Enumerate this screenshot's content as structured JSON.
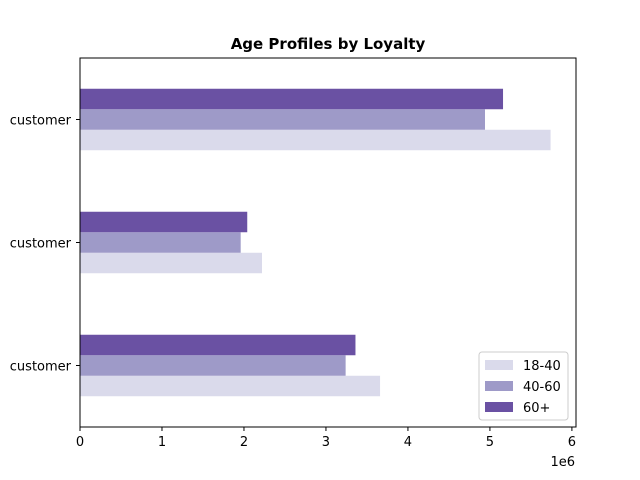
{
  "chart_data": {
    "type": "bar",
    "orientation": "horizontal",
    "title": "Age Profiles by Loyalty",
    "xlabel": "",
    "ylabel": "",
    "x_scale_label": "1e6",
    "xlim": [
      0,
      6050000
    ],
    "x_ticks": [
      0,
      1000000,
      2000000,
      3000000,
      4000000,
      5000000,
      6000000
    ],
    "x_tick_labels": [
      "0",
      "1",
      "2",
      "3",
      "4",
      "5",
      "6"
    ],
    "categories": [
      "customer",
      "customer",
      "customer"
    ],
    "series": [
      {
        "name": "18-40",
        "color": "#dadaeb",
        "values": [
          3660000,
          2220000,
          5740000
        ]
      },
      {
        "name": "40-60",
        "color": "#9e9ac8",
        "values": [
          3240000,
          1960000,
          4940000
        ]
      },
      {
        "name": "60+",
        "color": "#6a51a3",
        "values": [
          3360000,
          2040000,
          5160000
        ]
      }
    ],
    "legend": {
      "placement": "lower-right"
    },
    "grid": false
  }
}
